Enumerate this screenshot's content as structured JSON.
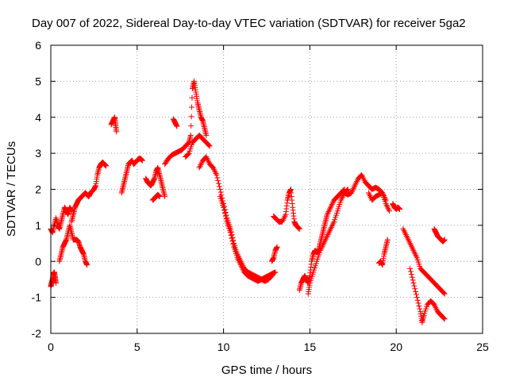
{
  "chart_data": {
    "type": "scatter",
    "title": "Day 007 of 2022, Sidereal Day-to-day VTEC variation (SDTVAR) for receiver 5ga2",
    "xlabel": "GPS time / hours",
    "ylabel": "SDTVAR / TECUs",
    "xlim": [
      0,
      25
    ],
    "ylim": [
      -2,
      6
    ],
    "xticks": [
      "0",
      "5",
      "10",
      "15",
      "20",
      "25"
    ],
    "yticks": [
      "-2",
      "-1",
      "0",
      "1",
      "2",
      "3",
      "4",
      "5",
      "6"
    ],
    "marker": "+",
    "marker_color": "#ff0000",
    "grid": true,
    "series": [
      {
        "name": "seg-early-dip",
        "x": [
          0.0,
          0.05,
          0.1,
          0.15,
          0.2,
          0.25,
          0.3
        ],
        "y": [
          -0.7,
          -0.6,
          -0.5,
          -0.35,
          -0.3,
          -0.45,
          -0.6
        ]
      },
      {
        "name": "seg-early-high",
        "x": [
          0.0,
          0.1,
          0.2,
          0.3,
          0.4,
          0.5,
          0.6,
          0.7,
          0.8,
          0.9,
          1.0,
          1.1,
          1.2
        ],
        "y": [
          0.9,
          0.8,
          1.0,
          1.2,
          1.0,
          0.9,
          1.1,
          1.3,
          1.5,
          1.4,
          1.3,
          1.5,
          1.4
        ]
      },
      {
        "name": "seg-early-low",
        "x": [
          0.5,
          0.6,
          0.7,
          0.8,
          0.9,
          1.0,
          1.1,
          1.2,
          1.3,
          1.4,
          1.5,
          1.6,
          1.7,
          1.8,
          1.9,
          2.0,
          2.1
        ],
        "y": [
          0.0,
          0.2,
          0.4,
          0.5,
          0.6,
          0.8,
          1.0,
          0.8,
          0.6,
          0.6,
          0.6,
          0.55,
          0.4,
          0.3,
          0.2,
          0.0,
          -0.1
        ]
      },
      {
        "name": "seg-rise-to-3",
        "x": [
          1.2,
          1.3,
          1.4,
          1.5,
          1.6,
          1.7,
          1.8,
          1.9,
          2.0,
          2.1,
          2.2,
          2.3,
          2.4,
          2.5,
          2.6,
          2.7,
          2.8,
          2.9,
          3.0,
          3.1,
          3.2
        ],
        "y": [
          1.1,
          1.3,
          1.5,
          1.6,
          1.7,
          1.75,
          1.8,
          1.85,
          1.9,
          1.85,
          1.8,
          1.9,
          1.95,
          2.0,
          2.1,
          2.4,
          2.6,
          2.7,
          2.75,
          2.7,
          2.65
        ]
      },
      {
        "name": "seg-spike-3p7",
        "x": [
          3.5,
          3.6,
          3.7,
          3.75,
          3.8
        ],
        "y": [
          3.8,
          3.9,
          4.0,
          3.8,
          3.6
        ]
      },
      {
        "name": "seg-4-to-5",
        "x": [
          4.1,
          4.2,
          4.3,
          4.4,
          4.5,
          4.6,
          4.7,
          4.8,
          4.9,
          5.0,
          5.1,
          5.2,
          5.3
        ],
        "y": [
          1.9,
          2.1,
          2.3,
          2.5,
          2.7,
          2.75,
          2.8,
          2.7,
          2.75,
          2.8,
          2.85,
          2.85,
          2.8
        ]
      },
      {
        "name": "seg-5p5-to-6p5",
        "x": [
          5.5,
          5.6,
          5.7,
          5.8,
          5.9,
          6.0,
          6.1,
          6.2,
          6.3,
          6.4,
          6.5,
          6.6
        ],
        "y": [
          2.3,
          2.2,
          2.15,
          2.1,
          2.2,
          2.3,
          2.5,
          2.6,
          2.4,
          2.2,
          2.0,
          1.8
        ]
      },
      {
        "name": "seg-dip-6p2",
        "x": [
          5.9,
          6.0,
          6.1,
          6.2,
          6.3
        ],
        "y": [
          1.7,
          1.75,
          1.8,
          1.85,
          1.8
        ]
      },
      {
        "name": "seg-spike-7p2",
        "x": [
          7.1,
          7.2,
          7.3
        ],
        "y": [
          3.95,
          3.85,
          3.75
        ]
      },
      {
        "name": "seg-rise-to-peak",
        "x": [
          6.6,
          6.8,
          7.0,
          7.2,
          7.4,
          7.6,
          7.8,
          8.0,
          8.1,
          8.2,
          8.3,
          8.4,
          8.5,
          8.6,
          8.7,
          8.8,
          8.9,
          9.0
        ],
        "y": [
          2.7,
          2.85,
          2.95,
          3.0,
          3.05,
          3.1,
          3.2,
          3.3,
          3.5,
          4.8,
          5.0,
          4.7,
          4.4,
          4.2,
          4.0,
          3.9,
          3.7,
          3.5
        ]
      },
      {
        "name": "seg-plateau-8-9",
        "x": [
          7.8,
          8.0,
          8.2,
          8.4,
          8.6,
          8.8,
          9.0,
          9.2
        ],
        "y": [
          2.9,
          3.0,
          3.3,
          3.4,
          3.5,
          3.4,
          3.3,
          3.2
        ]
      },
      {
        "name": "seg-drop-after-9",
        "x": [
          8.6,
          8.8,
          9.0,
          9.2,
          9.4,
          9.6,
          9.8,
          10.0,
          10.2,
          10.4,
          10.6,
          10.8,
          11.0,
          11.2,
          11.4,
          11.6,
          11.8,
          12.0,
          12.2,
          12.4,
          12.6,
          12.8,
          13.0
        ],
        "y": [
          2.6,
          2.8,
          2.9,
          2.7,
          2.6,
          2.4,
          2.0,
          1.6,
          1.2,
          0.9,
          0.5,
          0.2,
          0.0,
          -0.2,
          -0.3,
          -0.35,
          -0.4,
          -0.45,
          -0.5,
          -0.45,
          -0.4,
          -0.35,
          -0.3
        ]
      },
      {
        "name": "seg-drop-b",
        "x": [
          9.8,
          10.0,
          10.2,
          10.4,
          10.6,
          10.8,
          11.0,
          11.2,
          11.4,
          11.6,
          11.8,
          12.0,
          12.2,
          12.4,
          12.6,
          12.8
        ],
        "y": [
          1.8,
          1.5,
          1.1,
          0.8,
          0.4,
          0.1,
          -0.1,
          -0.3,
          -0.4,
          -0.45,
          -0.5,
          -0.55,
          -0.5,
          -0.55,
          -0.5,
          -0.4
        ]
      },
      {
        "name": "seg-12p8-to-13",
        "x": [
          12.8,
          12.9,
          13.0,
          13.1
        ],
        "y": [
          0.0,
          0.1,
          0.3,
          0.4
        ]
      },
      {
        "name": "seg-13-to-14p5",
        "x": [
          12.9,
          13.0,
          13.2,
          13.4,
          13.6,
          13.7,
          13.8,
          13.9,
          14.0,
          14.1,
          14.2,
          14.3,
          14.4
        ],
        "y": [
          1.25,
          1.2,
          1.1,
          1.1,
          1.3,
          1.7,
          1.9,
          2.0,
          1.5,
          1.1,
          1.0,
          0.95,
          0.9
        ]
      },
      {
        "name": "seg-14p5-to-17",
        "x": [
          14.4,
          14.5,
          14.6,
          14.7,
          14.8,
          14.9,
          15.0,
          15.1,
          15.2,
          15.3,
          15.4,
          15.5,
          15.6,
          15.7,
          15.8,
          15.9,
          16.0,
          16.2,
          16.4,
          16.6,
          16.8,
          17.0
        ],
        "y": [
          -0.8,
          -0.6,
          -0.5,
          -0.4,
          -0.5,
          -0.6,
          -0.4,
          0.0,
          0.2,
          0.3,
          0.25,
          0.3,
          0.5,
          0.7,
          0.9,
          1.1,
          1.3,
          1.5,
          1.7,
          1.8,
          1.9,
          2.0
        ]
      },
      {
        "name": "seg-14p5-to-17-b",
        "x": [
          14.9,
          15.0,
          15.2,
          15.4,
          15.6,
          15.8,
          16.0,
          16.2,
          16.4,
          16.6,
          16.8,
          17.0,
          17.2
        ],
        "y": [
          -0.9,
          -0.6,
          -0.3,
          0.0,
          0.3,
          0.5,
          0.7,
          0.9,
          1.1,
          1.4,
          1.7,
          1.9,
          2.0
        ]
      },
      {
        "name": "seg-17-to-19",
        "x": [
          17.0,
          17.2,
          17.4,
          17.6,
          17.8,
          18.0,
          18.2,
          18.4,
          18.6,
          18.8,
          19.0,
          19.2,
          19.4
        ],
        "y": [
          1.9,
          1.85,
          1.9,
          2.1,
          2.3,
          2.4,
          2.2,
          2.1,
          2.0,
          2.05,
          2.0,
          1.9,
          1.7
        ]
      },
      {
        "name": "seg-18-to-19p5",
        "x": [
          18.4,
          18.6,
          18.8,
          19.0,
          19.2,
          19.4,
          19.6
        ],
        "y": [
          1.9,
          1.7,
          1.8,
          1.85,
          1.9,
          1.6,
          1.4
        ]
      },
      {
        "name": "seg-19-to-19p5-low",
        "x": [
          19.0,
          19.1,
          19.2,
          19.3,
          19.4,
          19.5
        ],
        "y": [
          -0.05,
          0.0,
          -0.1,
          0.2,
          0.4,
          0.6
        ]
      },
      {
        "name": "seg-20",
        "x": [
          19.8,
          19.9,
          20.0,
          20.1,
          20.2
        ],
        "y": [
          1.6,
          1.5,
          1.45,
          1.5,
          1.45
        ]
      },
      {
        "name": "seg-20p5-to-22p8-a",
        "x": [
          20.4,
          20.6,
          20.8,
          21.0,
          21.2,
          21.4,
          21.6,
          21.8,
          22.0,
          22.2,
          22.4,
          22.6,
          22.8
        ],
        "y": [
          0.9,
          0.7,
          0.5,
          0.3,
          0.1,
          -0.2,
          -0.3,
          -0.4,
          -0.5,
          -0.6,
          -0.7,
          -0.8,
          -0.9
        ]
      },
      {
        "name": "seg-20p5-to-22p8-b",
        "x": [
          20.8,
          21.0,
          21.2,
          21.4,
          21.5,
          21.6,
          21.8,
          22.0,
          22.2,
          22.4,
          22.6,
          22.8
        ],
        "y": [
          -0.2,
          -0.6,
          -1.0,
          -1.4,
          -1.7,
          -1.5,
          -1.2,
          -1.1,
          -1.2,
          -1.4,
          -1.5,
          -1.6
        ]
      },
      {
        "name": "seg-22p2-to-22p8",
        "x": [
          22.2,
          22.3,
          22.4,
          22.5,
          22.6,
          22.7,
          22.8
        ],
        "y": [
          0.9,
          0.8,
          0.7,
          0.65,
          0.6,
          0.55,
          0.6
        ]
      }
    ]
  }
}
